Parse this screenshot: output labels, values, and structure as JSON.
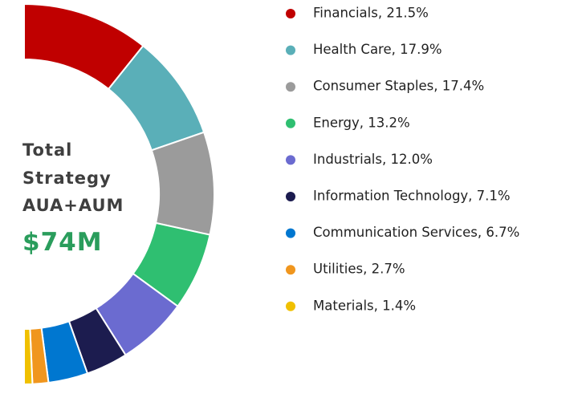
{
  "chart_data": {
    "type": "pie",
    "center_text": [
      "Total",
      "Strategy",
      "AUA+AUM"
    ],
    "center_value": "$74M",
    "labels": [
      "Financials, 21.5%",
      "Health Care, 17.9%",
      "Consumer Staples, 17.4%",
      "Energy, 13.2%",
      "Industrials, 12.0%",
      "Information Technology, 7.1%",
      "Communication Services, 6.7%",
      "Utilities, 2.7%",
      "Materials, 1.4%"
    ],
    "values": [
      21.5,
      17.9,
      17.4,
      13.2,
      12.0,
      7.1,
      6.7,
      2.7,
      1.4
    ],
    "colors": [
      "#c00000",
      "#5aafb8",
      "#9b9b9b",
      "#2fbf71",
      "#6b6bd0",
      "#1c1c4f",
      "#0077d0",
      "#f0961e",
      "#f0c000"
    ]
  }
}
